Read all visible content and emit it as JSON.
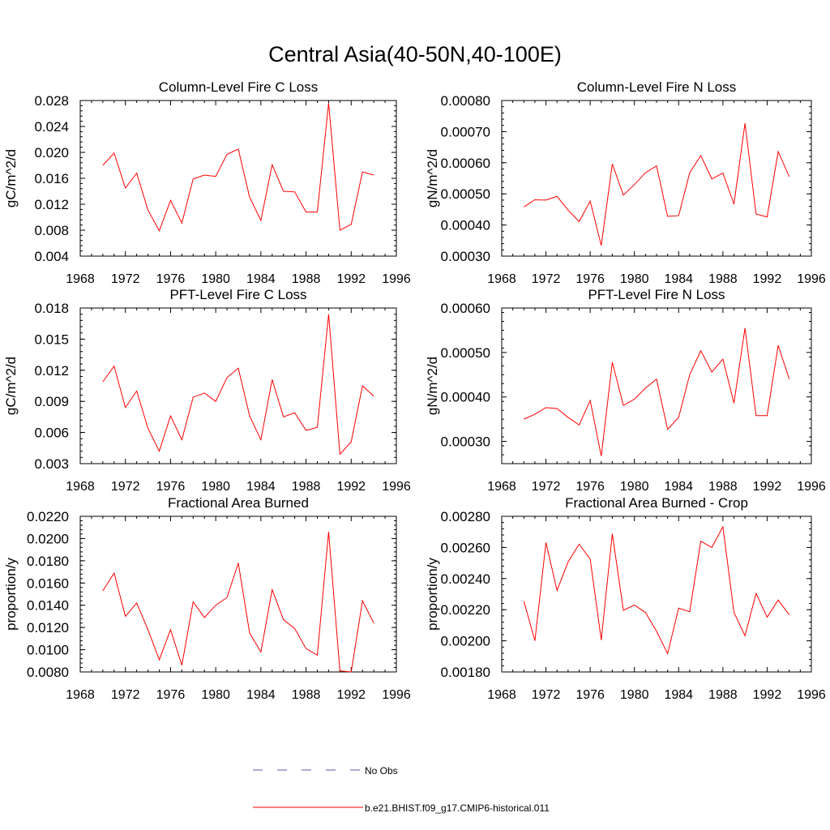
{
  "figure": {
    "title": "Central Asia(40-50N,40-100E)"
  },
  "legend": {
    "position": "bottom-center",
    "entries": [
      {
        "label": "No Obs",
        "style": "dashed",
        "color": "#5a5aa0"
      },
      {
        "label": "b.e21.BHIST.f09_g17.CMIP6-historical.011",
        "style": "solid",
        "color": "#ff0000"
      }
    ]
  },
  "chart_data": [
    {
      "type": "line",
      "title": "Column-Level Fire C Loss",
      "ylabel": "gC/m^2/d",
      "xlim": [
        1968,
        1996
      ],
      "xticks": [
        "1968",
        "1972",
        "1976",
        "1980",
        "1984",
        "1988",
        "1992",
        "1996"
      ],
      "ylim": [
        0.004,
        0.028
      ],
      "yticks": [
        "0.004",
        "0.008",
        "0.012",
        "0.016",
        "0.020",
        "0.024",
        "0.028"
      ],
      "x": [
        1970,
        1971,
        1972,
        1973,
        1974,
        1975,
        1976,
        1977,
        1978,
        1979,
        1980,
        1981,
        1982,
        1983,
        1984,
        1985,
        1986,
        1987,
        1988,
        1989,
        1990,
        1991,
        1992,
        1993,
        1994
      ],
      "series": [
        {
          "color": "#ff0000",
          "values": [
            0.018,
            0.0199,
            0.0145,
            0.0168,
            0.0111,
            0.0079,
            0.0126,
            0.0091,
            0.0159,
            0.0165,
            0.0163,
            0.0197,
            0.0205,
            0.0131,
            0.0095,
            0.0181,
            0.014,
            0.0139,
            0.0108,
            0.0108,
            0.0276,
            0.008,
            0.0089,
            0.017,
            0.0165
          ]
        }
      ]
    },
    {
      "type": "line",
      "title": "Column-Level Fire N Loss",
      "ylabel": "gN/m^2/d",
      "xlim": [
        1968,
        1996
      ],
      "xticks": [
        "1968",
        "1972",
        "1976",
        "1980",
        "1984",
        "1988",
        "1992",
        "1996"
      ],
      "ylim": [
        0.0003,
        0.0008
      ],
      "yticks": [
        "0.00030",
        "0.00040",
        "0.00050",
        "0.00060",
        "0.00070",
        "0.00080"
      ],
      "x": [
        1970,
        1971,
        1972,
        1973,
        1974,
        1975,
        1976,
        1977,
        1978,
        1979,
        1980,
        1981,
        1982,
        1983,
        1984,
        1985,
        1986,
        1987,
        1988,
        1989,
        1990,
        1991,
        1992,
        1993,
        1994
      ],
      "series": [
        {
          "color": "#ff0000",
          "values": [
            0.000458,
            0.000481,
            0.00048,
            0.000492,
            0.000448,
            0.000411,
            0.000477,
            0.000334,
            0.000596,
            0.000496,
            0.00053,
            0.000568,
            0.00059,
            0.000428,
            0.00043,
            0.000568,
            0.000623,
            0.000548,
            0.000567,
            0.000467,
            0.000727,
            0.000435,
            0.000426,
            0.000636,
            0.000555
          ]
        }
      ]
    },
    {
      "type": "line",
      "title": "PFT-Level Fire C Loss",
      "ylabel": "gC/m^2/d",
      "xlim": [
        1968,
        1996
      ],
      "xticks": [
        "1968",
        "1972",
        "1976",
        "1980",
        "1984",
        "1988",
        "1992",
        "1996"
      ],
      "ylim": [
        0.003,
        0.018
      ],
      "yticks": [
        "0.003",
        "0.006",
        "0.009",
        "0.012",
        "0.015",
        "0.018"
      ],
      "x": [
        1970,
        1971,
        1972,
        1973,
        1974,
        1975,
        1976,
        1977,
        1978,
        1979,
        1980,
        1981,
        1982,
        1983,
        1984,
        1985,
        1986,
        1987,
        1988,
        1989,
        1990,
        1991,
        1992,
        1993,
        1994
      ],
      "series": [
        {
          "color": "#ff0000",
          "values": [
            0.0109,
            0.0124,
            0.0084,
            0.01,
            0.0064,
            0.0042,
            0.0076,
            0.0053,
            0.0094,
            0.0098,
            0.009,
            0.0113,
            0.0122,
            0.0076,
            0.0053,
            0.0111,
            0.0075,
            0.0079,
            0.0062,
            0.0065,
            0.0174,
            0.0039,
            0.0051,
            0.0105,
            0.0095
          ]
        }
      ]
    },
    {
      "type": "line",
      "title": "PFT-Level Fire N Loss",
      "ylabel": "gN/m^2/d",
      "xlim": [
        1968,
        1996
      ],
      "xticks": [
        "1968",
        "1972",
        "1976",
        "1980",
        "1984",
        "1988",
        "1992",
        "1996"
      ],
      "ylim": [
        0.00025,
        0.0006
      ],
      "yticks": [
        "0.00030",
        "0.00040",
        "0.00050",
        "0.00060"
      ],
      "x": [
        1970,
        1971,
        1972,
        1973,
        1974,
        1975,
        1976,
        1977,
        1978,
        1979,
        1980,
        1981,
        1982,
        1983,
        1984,
        1985,
        1986,
        1987,
        1988,
        1989,
        1990,
        1991,
        1992,
        1993,
        1994
      ],
      "series": [
        {
          "color": "#ff0000",
          "values": [
            0.00035,
            0.000361,
            0.000376,
            0.000374,
            0.000354,
            0.000337,
            0.000392,
            0.000267,
            0.000478,
            0.000381,
            0.000395,
            0.00042,
            0.00044,
            0.000327,
            0.000354,
            0.00045,
            0.000504,
            0.000456,
            0.000485,
            0.000386,
            0.000555,
            0.000358,
            0.000358,
            0.000516,
            0.00044
          ]
        }
      ]
    },
    {
      "type": "line",
      "title": "Fractional Area Burned",
      "ylabel": "proportion/y",
      "xlim": [
        1968,
        1996
      ],
      "xticks": [
        "1968",
        "1972",
        "1976",
        "1980",
        "1984",
        "1988",
        "1992",
        "1996"
      ],
      "ylim": [
        0.008,
        0.022
      ],
      "yticks": [
        "0.0080",
        "0.0100",
        "0.0120",
        "0.0140",
        "0.0160",
        "0.0180",
        "0.0200",
        "0.0220"
      ],
      "x": [
        1970,
        1971,
        1972,
        1973,
        1974,
        1975,
        1976,
        1977,
        1978,
        1979,
        1980,
        1981,
        1982,
        1983,
        1984,
        1985,
        1986,
        1987,
        1988,
        1989,
        1990,
        1991,
        1992,
        1993,
        1994
      ],
      "series": [
        {
          "color": "#ff0000",
          "values": [
            0.0153,
            0.0169,
            0.013,
            0.0142,
            0.0118,
            0.0091,
            0.0118,
            0.0086,
            0.0143,
            0.0129,
            0.014,
            0.0147,
            0.0178,
            0.0115,
            0.0098,
            0.0154,
            0.0127,
            0.0119,
            0.0101,
            0.0095,
            0.0206,
            0.0081,
            0.008,
            0.0144,
            0.0124
          ]
        }
      ]
    },
    {
      "type": "line",
      "title": "Fractional Area Burned - Crop",
      "ylabel": "proportion/y",
      "xlim": [
        1968,
        1996
      ],
      "xticks": [
        "1968",
        "1972",
        "1976",
        "1980",
        "1984",
        "1988",
        "1992",
        "1996"
      ],
      "ylim": [
        0.0018,
        0.0028
      ],
      "yticks": [
        "0.00180",
        "0.00200",
        "0.00220",
        "0.00240",
        "0.00260",
        "0.00280"
      ],
      "x": [
        1970,
        1971,
        1972,
        1973,
        1974,
        1975,
        1976,
        1977,
        1978,
        1979,
        1980,
        1981,
        1982,
        1983,
        1984,
        1985,
        1986,
        1987,
        1988,
        1989,
        1990,
        1991,
        1992,
        1993,
        1994
      ],
      "series": [
        {
          "color": "#ff0000",
          "values": [
            0.002255,
            0.002,
            0.002632,
            0.002323,
            0.002507,
            0.002621,
            0.002525,
            0.002005,
            0.002688,
            0.002196,
            0.00223,
            0.002182,
            0.002061,
            0.001918,
            0.00221,
            0.002187,
            0.00264,
            0.0026,
            0.002733,
            0.002183,
            0.002032,
            0.002305,
            0.002152,
            0.002262,
            0.002167
          ]
        }
      ]
    }
  ]
}
